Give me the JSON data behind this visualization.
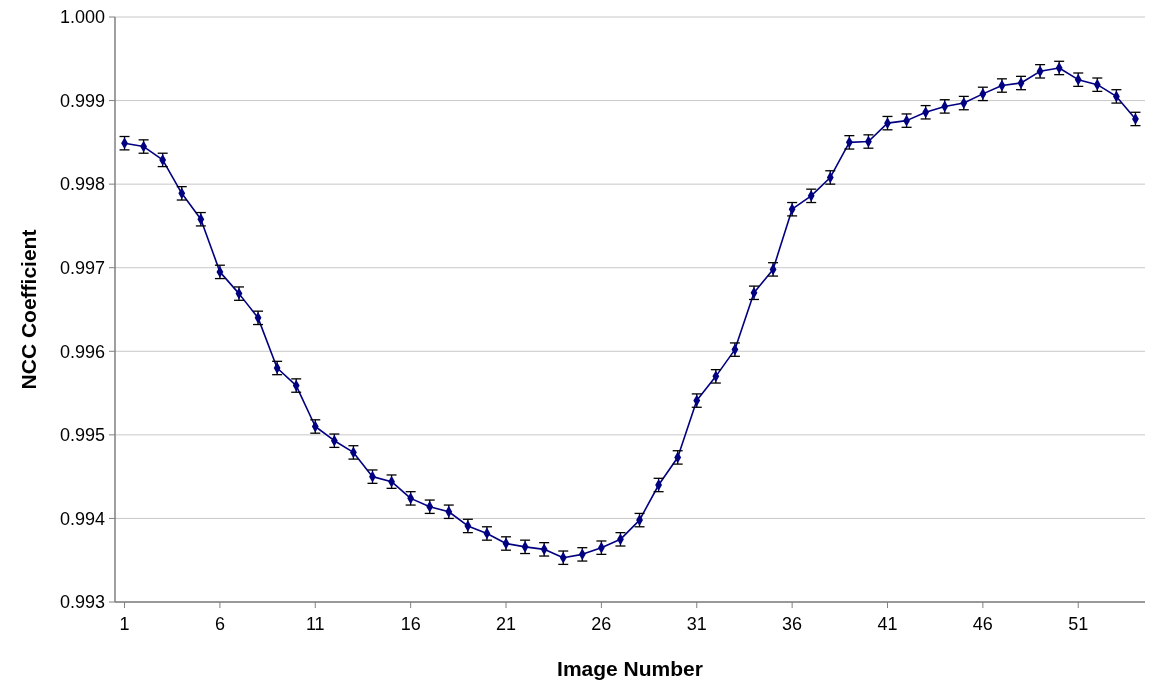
{
  "chart_data": {
    "type": "line",
    "xlabel": "Image Number",
    "ylabel": "NCC Coefficient",
    "x": [
      1,
      2,
      3,
      4,
      5,
      6,
      7,
      8,
      9,
      10,
      11,
      12,
      13,
      14,
      15,
      16,
      17,
      18,
      19,
      20,
      21,
      22,
      23,
      24,
      25,
      26,
      27,
      28,
      29,
      30,
      31,
      32,
      33,
      34,
      35,
      36,
      37,
      38,
      39,
      40,
      41,
      42,
      43,
      44,
      45,
      46,
      47,
      48,
      49,
      50,
      51,
      52,
      53,
      54
    ],
    "xlim": [
      0.5,
      54.5
    ],
    "xticks": [
      1,
      6,
      11,
      16,
      21,
      26,
      31,
      36,
      41,
      46,
      51
    ],
    "series": [
      {
        "color": "#000080",
        "values": [
          0.99849,
          0.99845,
          0.99829,
          0.99789,
          0.99758,
          0.99695,
          0.99669,
          0.9964,
          0.9958,
          0.99559,
          0.9951,
          0.99493,
          0.99479,
          0.9945,
          0.99444,
          0.99424,
          0.99414,
          0.99408,
          0.99391,
          0.99382,
          0.9937,
          0.99366,
          0.99363,
          0.99353,
          0.99357,
          0.99365,
          0.99375,
          0.99398,
          0.9944,
          0.99473,
          0.99541,
          0.9957,
          0.99602,
          0.9967,
          0.99698,
          0.9977,
          0.99786,
          0.99808,
          0.9985,
          0.99851,
          0.99873,
          0.99876,
          0.99886,
          0.99893,
          0.99897,
          0.99908,
          0.99918,
          0.99921,
          0.99935,
          0.99939,
          0.99925,
          0.99919,
          0.99905,
          0.99878
        ],
        "errors": [
          8e-05,
          8e-05,
          8e-05,
          8e-05,
          8e-05,
          8e-05,
          8e-05,
          8e-05,
          8e-05,
          8e-05,
          8e-05,
          8e-05,
          8e-05,
          8e-05,
          8e-05,
          8e-05,
          8e-05,
          8e-05,
          8e-05,
          8e-05,
          8e-05,
          8e-05,
          8e-05,
          8e-05,
          8e-05,
          8e-05,
          8e-05,
          8e-05,
          8e-05,
          8e-05,
          8e-05,
          8e-05,
          8e-05,
          8e-05,
          8e-05,
          8e-05,
          8e-05,
          8e-05,
          8e-05,
          8e-05,
          8e-05,
          8e-05,
          8e-05,
          8e-05,
          8e-05,
          8e-05,
          8e-05,
          8e-05,
          8e-05,
          8e-05,
          8e-05,
          8e-05,
          8e-05,
          8e-05
        ]
      }
    ],
    "ylim": [
      0.993,
      1.0
    ],
    "yticks": [
      0.993,
      0.994,
      0.995,
      0.996,
      0.997,
      0.998,
      0.999,
      {
        "value": 1.0,
        "label": "1.000"
      }
    ],
    "grid": "y",
    "marker": "diamond",
    "line_style": "solid"
  }
}
